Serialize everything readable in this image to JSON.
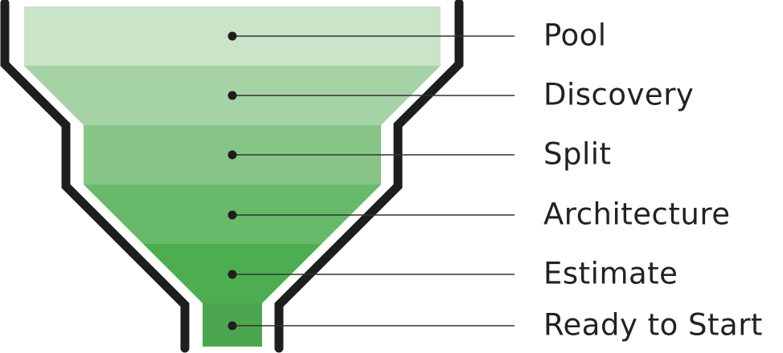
{
  "diagram": {
    "type": "funnel",
    "stages": [
      {
        "label": "Pool",
        "color": "#c9e4c9"
      },
      {
        "label": "Discovery",
        "color": "#a6d3a6"
      },
      {
        "label": "Split",
        "color": "#86c586"
      },
      {
        "label": "Architecture",
        "color": "#68b96a"
      },
      {
        "label": "Estimate",
        "color": "#4cae50"
      },
      {
        "label": "Ready to Start",
        "color": "#4ca64f"
      }
    ],
    "outline_color": "#1e1e1e",
    "connector_color": "#333333"
  }
}
